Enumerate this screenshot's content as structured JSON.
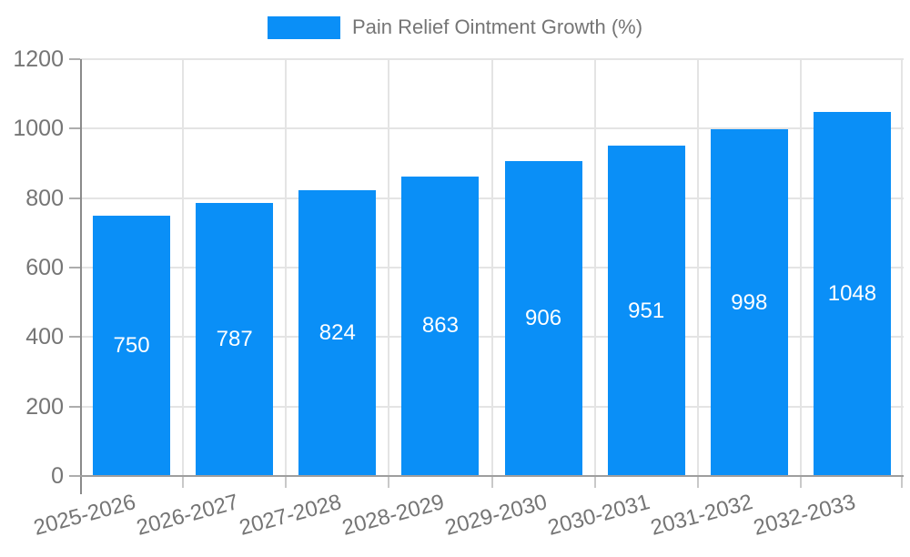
{
  "legend": {
    "label": "Pain Relief Ointment Growth (%)"
  },
  "chart_data": {
    "type": "bar",
    "title": "Pain Relief Ointment Growth (%)",
    "series_name": "Pain Relief Ointment Growth (%)",
    "categories": [
      "2025-2026",
      "2026-2027",
      "2027-2028",
      "2028-2029",
      "2029-2030",
      "2030-2031",
      "2031-2032",
      "2032-2033"
    ],
    "values": [
      750,
      787,
      824,
      863,
      906,
      951,
      998,
      1048
    ],
    "ylim": [
      0,
      1200
    ],
    "yticks": [
      0,
      200,
      400,
      600,
      800,
      1000,
      1200
    ],
    "grid": true,
    "legend_position": "top",
    "x_label_rotation_deg": -15,
    "colors": {
      "bar": "#0A8FF7",
      "value_label": "#FFFFFF",
      "axis_text": "#757575",
      "gridline": "#E4E4E4",
      "baseline": "#9E9E9E",
      "y_axis_line": "#8A8A8A",
      "y_tick": "#ADADAD",
      "x_tick": "#C9C9C9"
    }
  }
}
